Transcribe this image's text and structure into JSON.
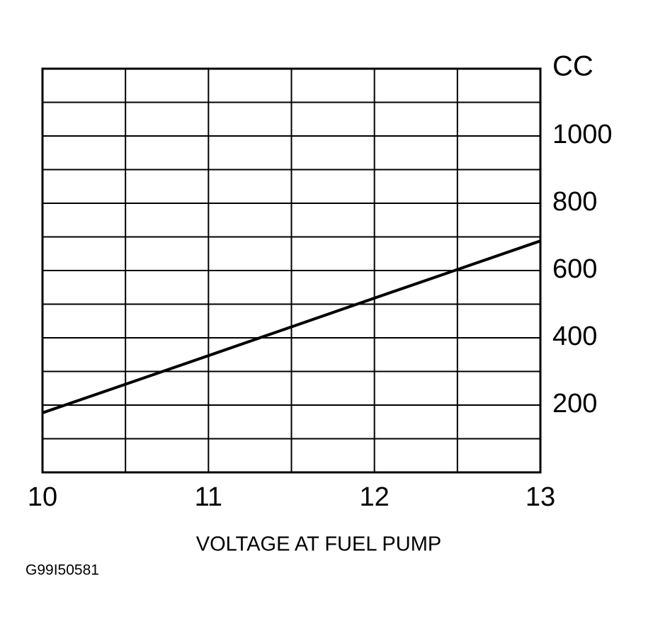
{
  "chart_data": {
    "type": "line",
    "y_label": "CC",
    "x_label": "VOLTAGE AT FUEL PUMP",
    "figure_id": "G99I50581",
    "x": [
      10,
      11,
      12,
      13
    ],
    "series": [
      {
        "color": "#000000",
        "values": [
          177,
          347,
          518,
          688
        ]
      }
    ],
    "xlim": [
      10,
      13
    ],
    "xticks": [
      10,
      11,
      12,
      13
    ],
    "xminor": [
      10.5,
      11.5,
      12.5
    ],
    "ylim": [
      0,
      1200
    ],
    "yticks": [
      200,
      400,
      600,
      800,
      1000
    ],
    "yminor": [
      100,
      300,
      500,
      700,
      900,
      1100
    ],
    "grid": true
  }
}
